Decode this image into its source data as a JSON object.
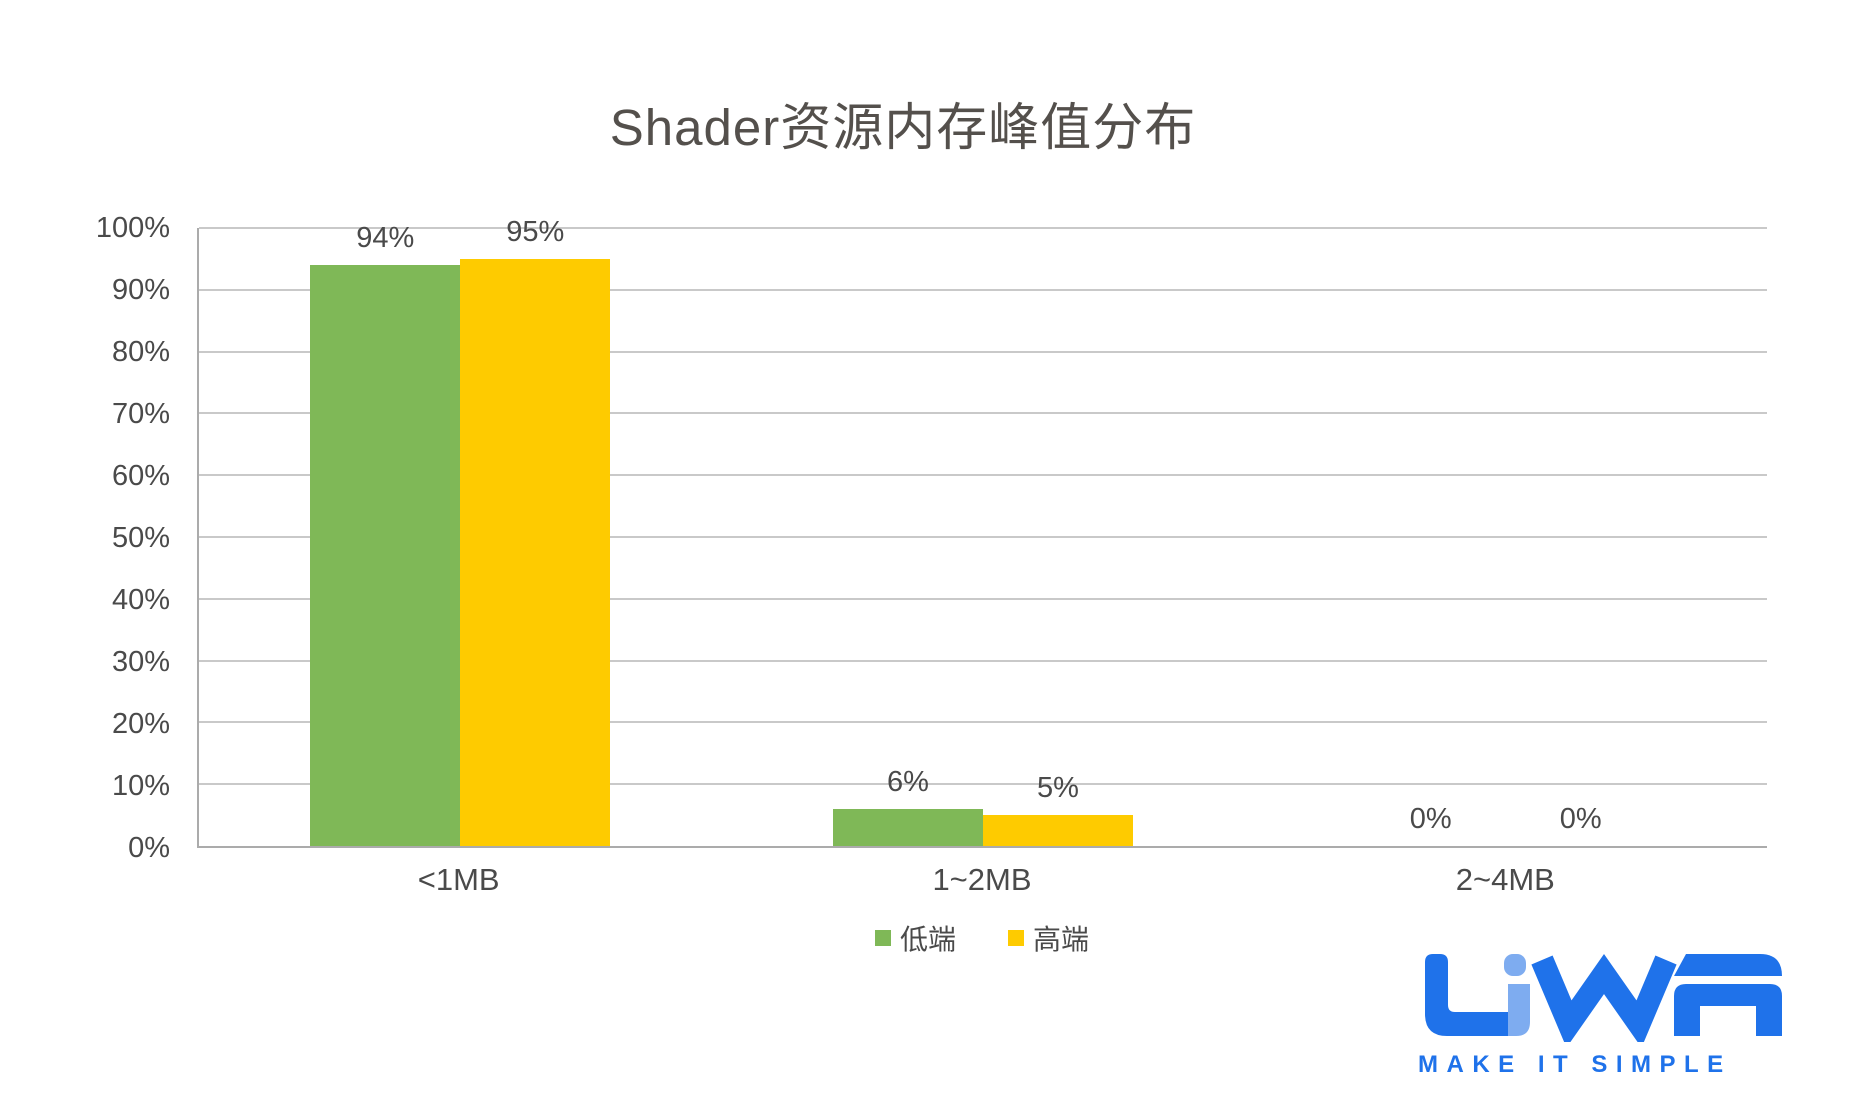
{
  "chart_data": {
    "type": "bar",
    "title": "Shader资源内存峰值分布",
    "categories": [
      "<1MB",
      "1~2MB",
      "2~4MB"
    ],
    "series": [
      {
        "key": "low-end",
        "name": "低端",
        "color": "#7fb857",
        "values": [
          94,
          6,
          0
        ]
      },
      {
        "key": "high-end",
        "name": "高端",
        "color": "#fecb00",
        "values": [
          95,
          5,
          0
        ]
      }
    ],
    "bar_label_suffix": "%",
    "data_labels": [
      [
        "94%",
        "6%",
        "0%"
      ],
      [
        "95%",
        "5%",
        "0%"
      ]
    ],
    "xlabel": "",
    "ylabel": "",
    "ylim": [
      0,
      100
    ],
    "yticks": [
      "100%",
      "90%",
      "80%",
      "70%",
      "60%",
      "50%",
      "40%",
      "30%",
      "20%",
      "10%",
      "0%"
    ],
    "grid": "horizontal-major-every-10pct",
    "legend_position": "bottom-center"
  },
  "branding": {
    "logo_letters": "LiWA",
    "tagline": "MAKE IT SIMPLE",
    "primary_blue": "#1f72ea",
    "light_blue": "#7eacf0"
  },
  "style": {
    "background": "#ffffff",
    "gridline_color": "#c9c9c9",
    "axis_line_color": "#ababab",
    "title_color": "#54504c",
    "label_color": "#4a4a4a"
  }
}
